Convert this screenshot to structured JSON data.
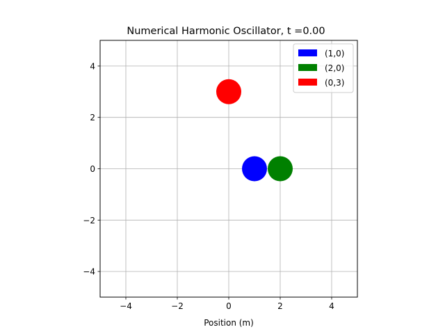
{
  "chart_data": {
    "type": "scatter",
    "title": "Numerical Harmonic Oscillator, t =0.00",
    "xlabel": "Position (m)",
    "ylabel": "",
    "xlim": [
      -5,
      5
    ],
    "ylim": [
      -5,
      5
    ],
    "xticks": [
      -4,
      -2,
      0,
      2,
      4
    ],
    "yticks": [
      -4,
      -2,
      0,
      2,
      4
    ],
    "xtick_labels": [
      "−4",
      "−2",
      "0",
      "2",
      "4"
    ],
    "ytick_labels": [
      "−4",
      "−2",
      "0",
      "2",
      "4"
    ],
    "grid": true,
    "legend_position": "top-right",
    "series": [
      {
        "name": "(1,0)",
        "color": "#0000ff",
        "x": [
          1
        ],
        "y": [
          0
        ]
      },
      {
        "name": "(2,0)",
        "color": "#008000",
        "x": [
          2
        ],
        "y": [
          0
        ]
      },
      {
        "name": "(0,3)",
        "color": "#ff0000",
        "x": [
          0
        ],
        "y": [
          3
        ]
      }
    ]
  }
}
